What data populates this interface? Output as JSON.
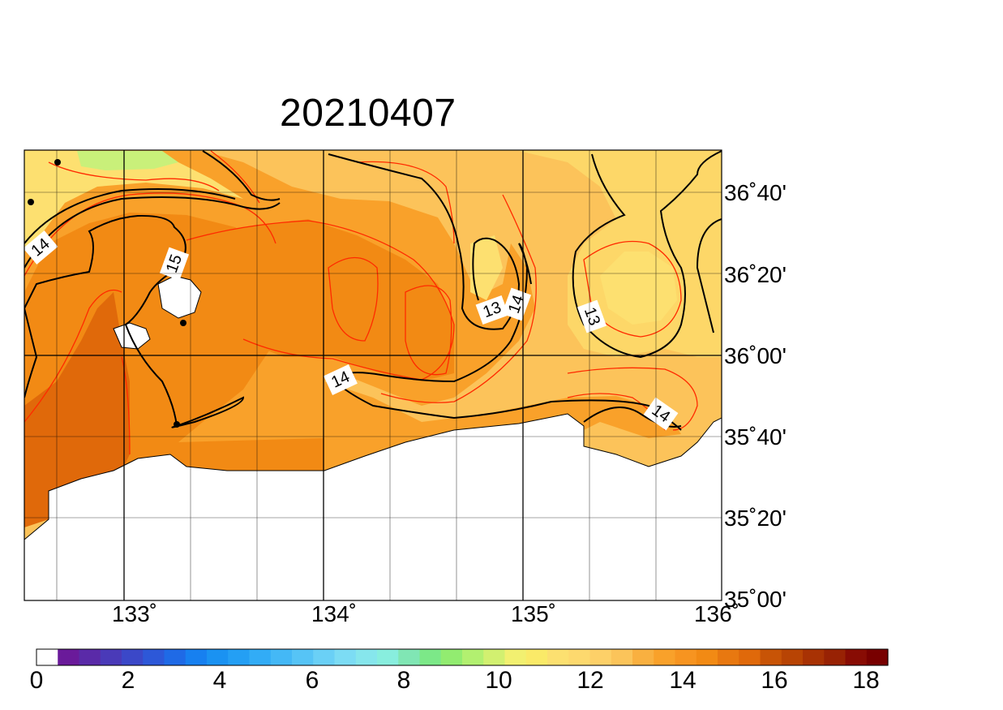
{
  "title": "20210407",
  "colors": {
    "c11": "#f8e85a",
    "c12": "#fde070",
    "c12_5": "#fdd768",
    "c13": "#fcc35a",
    "c14": "#f9a12a",
    "c15": "#f28a14",
    "c16": "#e0690a",
    "green": "#c9f07a",
    "land": "#ffffff",
    "red_contour": "#ff2a00",
    "black_contour": "#000000"
  },
  "lon_labels": [
    "133˚",
    "134˚",
    "135˚",
    "136˚"
  ],
  "lat_labels": [
    "36˚40'",
    "36˚20'",
    "36˚00'",
    "35˚40'",
    "35˚20'",
    "35˚00'"
  ],
  "contour_labels": [
    "14",
    "15",
    "13",
    "14",
    "13",
    "14",
    "14"
  ],
  "colorbar": {
    "colors": [
      "#ffffff",
      "#6a1a9a",
      "#5a2aa8",
      "#4a3ab8",
      "#3b48c8",
      "#2d58d8",
      "#1f6ae6",
      "#1780f0",
      "#1a92f2",
      "#249ff4",
      "#32acf6",
      "#44b8f6",
      "#56c4f6",
      "#6ad0f6",
      "#7cdcf4",
      "#86e6ec",
      "#88eede",
      "#80e6b4",
      "#7ce888",
      "#92ec70",
      "#b2f070",
      "#d2f070",
      "#f2f070",
      "#faea68",
      "#fce070",
      "#fdd96e",
      "#fdd068",
      "#fbc45a",
      "#f9b040",
      "#f9a12a",
      "#f79420",
      "#f28a14",
      "#e87810",
      "#e0690a",
      "#c85406",
      "#b84404",
      "#a83204",
      "#982204",
      "#880c04",
      "#780000"
    ],
    "tick_labels": [
      "0",
      "2",
      "4",
      "6",
      "8",
      "10",
      "12",
      "14",
      "16",
      "18"
    ]
  }
}
